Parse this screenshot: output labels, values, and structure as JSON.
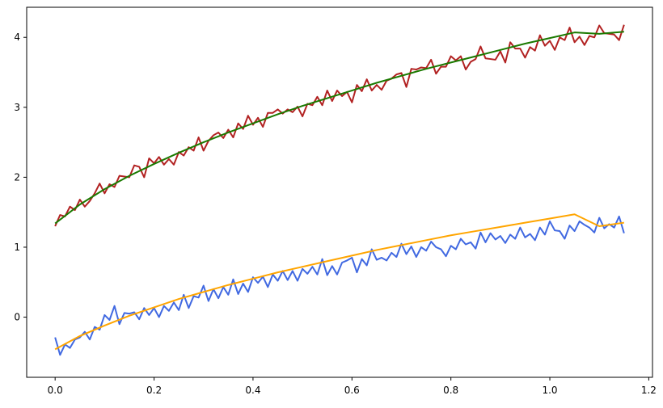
{
  "chart_data": {
    "type": "line",
    "title": "",
    "xlabel": "",
    "ylabel": "",
    "xlim": [
      -0.0575,
      1.2075
    ],
    "ylim": [
      -0.86,
      4.43
    ],
    "x_ticks": [
      0.0,
      0.2,
      0.4,
      0.6,
      0.8,
      1.0,
      1.2
    ],
    "x_tick_labels": [
      "0.0",
      "0.2",
      "0.4",
      "0.6",
      "0.8",
      "1.0",
      "1.2"
    ],
    "y_ticks": [
      0,
      1,
      2,
      3,
      4
    ],
    "y_tick_labels": [
      "0",
      "1",
      "2",
      "3",
      "4"
    ],
    "grid": false,
    "legend": "none",
    "x": [
      0.0,
      0.1,
      0.2,
      0.3,
      0.4,
      0.5,
      0.6,
      0.7,
      0.8,
      0.9,
      1.0,
      1.1,
      1.15
    ],
    "series": [
      {
        "color": "#b22222",
        "style": "noisy",
        "x": [
          0.0,
          0.01,
          0.02,
          0.03,
          0.04,
          0.05,
          0.06,
          0.07,
          0.08,
          0.09,
          0.1,
          0.11,
          0.12,
          0.13,
          0.14,
          0.15,
          0.16,
          0.17,
          0.18,
          0.19,
          0.2,
          0.21,
          0.22,
          0.23,
          0.24,
          0.25,
          0.26,
          0.27,
          0.28,
          0.29,
          0.3,
          0.31,
          0.32,
          0.33,
          0.34,
          0.35,
          0.36,
          0.37,
          0.38,
          0.39,
          0.4,
          0.41,
          0.42,
          0.43,
          0.44,
          0.45,
          0.46,
          0.47,
          0.48,
          0.49,
          0.5,
          0.51,
          0.52,
          0.53,
          0.54,
          0.55,
          0.56,
          0.57,
          0.58,
          0.59,
          0.6,
          0.61,
          0.62,
          0.63,
          0.64,
          0.65,
          0.66,
          0.67,
          0.68,
          0.69,
          0.7,
          0.71,
          0.72,
          0.73,
          0.74,
          0.75,
          0.76,
          0.77,
          0.78,
          0.79,
          0.8,
          0.81,
          0.82,
          0.83,
          0.84,
          0.85,
          0.86,
          0.87,
          0.88,
          0.89,
          0.9,
          0.91,
          0.92,
          0.93,
          0.94,
          0.95,
          0.96,
          0.97,
          0.98,
          0.99,
          1.0,
          1.01,
          1.02,
          1.03,
          1.04,
          1.05,
          1.06,
          1.07,
          1.08,
          1.09,
          1.1,
          1.11,
          1.12,
          1.13,
          1.14,
          1.15
        ],
        "values": [
          1.3,
          1.46,
          1.44,
          1.58,
          1.53,
          1.68,
          1.58,
          1.66,
          1.77,
          1.91,
          1.77,
          1.9,
          1.86,
          2.02,
          2.01,
          2.0,
          2.17,
          2.15,
          2.0,
          2.27,
          2.2,
          2.29,
          2.18,
          2.26,
          2.18,
          2.36,
          2.31,
          2.43,
          2.38,
          2.57,
          2.38,
          2.52,
          2.6,
          2.64,
          2.56,
          2.68,
          2.57,
          2.77,
          2.69,
          2.88,
          2.75,
          2.85,
          2.72,
          2.92,
          2.92,
          2.97,
          2.91,
          2.97,
          2.93,
          3.01,
          2.87,
          3.05,
          3.03,
          3.15,
          3.03,
          3.24,
          3.09,
          3.24,
          3.16,
          3.22,
          3.07,
          3.32,
          3.23,
          3.4,
          3.24,
          3.32,
          3.25,
          3.38,
          3.41,
          3.47,
          3.49,
          3.29,
          3.55,
          3.54,
          3.57,
          3.56,
          3.68,
          3.48,
          3.58,
          3.58,
          3.73,
          3.67,
          3.73,
          3.54,
          3.65,
          3.69,
          3.87,
          3.7,
          3.69,
          3.68,
          3.8,
          3.64,
          3.93,
          3.84,
          3.84,
          3.71,
          3.86,
          3.81,
          4.03,
          3.88,
          3.95,
          3.82,
          4.0,
          3.96,
          4.14,
          3.93,
          4.01,
          3.89,
          4.02,
          4.0,
          4.17,
          4.06,
          4.05,
          4.04,
          3.96,
          4.18
        ]
      },
      {
        "color": "#1a7a00",
        "style": "smooth",
        "x": [
          0.0,
          0.05,
          0.1,
          0.15,
          0.2,
          0.25,
          0.3,
          0.35,
          0.4,
          0.45,
          0.5,
          0.55,
          0.6,
          0.65,
          0.7,
          0.75,
          0.8,
          0.85,
          0.9,
          0.95,
          1.0,
          1.05,
          1.1,
          1.15
        ],
        "values": [
          1.34,
          1.61,
          1.83,
          2.02,
          2.19,
          2.35,
          2.5,
          2.64,
          2.77,
          2.9,
          3.02,
          3.13,
          3.24,
          3.35,
          3.45,
          3.55,
          3.64,
          3.73,
          3.82,
          3.91,
          3.99,
          4.07,
          4.05,
          4.08
        ]
      },
      {
        "color": "#4169e1",
        "style": "noisy",
        "x": [
          0.0,
          0.01,
          0.02,
          0.03,
          0.04,
          0.05,
          0.06,
          0.07,
          0.08,
          0.09,
          0.1,
          0.11,
          0.12,
          0.13,
          0.14,
          0.15,
          0.16,
          0.17,
          0.18,
          0.19,
          0.2,
          0.21,
          0.22,
          0.23,
          0.24,
          0.25,
          0.26,
          0.27,
          0.28,
          0.29,
          0.3,
          0.31,
          0.32,
          0.33,
          0.34,
          0.35,
          0.36,
          0.37,
          0.38,
          0.39,
          0.4,
          0.41,
          0.42,
          0.43,
          0.44,
          0.45,
          0.46,
          0.47,
          0.48,
          0.49,
          0.5,
          0.51,
          0.52,
          0.53,
          0.54,
          0.55,
          0.56,
          0.57,
          0.58,
          0.59,
          0.6,
          0.61,
          0.62,
          0.63,
          0.64,
          0.65,
          0.66,
          0.67,
          0.68,
          0.69,
          0.7,
          0.71,
          0.72,
          0.73,
          0.74,
          0.75,
          0.76,
          0.77,
          0.78,
          0.79,
          0.8,
          0.81,
          0.82,
          0.83,
          0.84,
          0.85,
          0.86,
          0.87,
          0.88,
          0.89,
          0.9,
          0.91,
          0.92,
          0.93,
          0.94,
          0.95,
          0.96,
          0.97,
          0.98,
          0.99,
          1.0,
          1.01,
          1.02,
          1.03,
          1.04,
          1.05,
          1.06,
          1.07,
          1.08,
          1.09,
          1.1,
          1.11,
          1.12,
          1.13,
          1.14,
          1.15
        ],
        "values": [
          -0.29,
          -0.54,
          -0.39,
          -0.44,
          -0.32,
          -0.29,
          -0.21,
          -0.32,
          -0.14,
          -0.18,
          0.03,
          -0.04,
          0.16,
          -0.1,
          0.06,
          0.05,
          0.07,
          -0.03,
          0.13,
          0.03,
          0.13,
          0.0,
          0.16,
          0.09,
          0.21,
          0.1,
          0.32,
          0.13,
          0.3,
          0.28,
          0.45,
          0.23,
          0.4,
          0.27,
          0.43,
          0.32,
          0.54,
          0.33,
          0.48,
          0.36,
          0.57,
          0.49,
          0.58,
          0.43,
          0.61,
          0.52,
          0.66,
          0.53,
          0.66,
          0.52,
          0.69,
          0.62,
          0.72,
          0.61,
          0.83,
          0.6,
          0.73,
          0.61,
          0.78,
          0.81,
          0.85,
          0.64,
          0.83,
          0.74,
          0.97,
          0.82,
          0.85,
          0.81,
          0.92,
          0.86,
          1.05,
          0.9,
          1.01,
          0.86,
          1.0,
          0.95,
          1.08,
          1.0,
          0.97,
          0.87,
          1.02,
          0.97,
          1.12,
          1.04,
          1.07,
          0.98,
          1.21,
          1.07,
          1.2,
          1.11,
          1.16,
          1.06,
          1.18,
          1.12,
          1.28,
          1.14,
          1.19,
          1.1,
          1.28,
          1.18,
          1.37,
          1.24,
          1.23,
          1.12,
          1.31,
          1.23,
          1.37,
          1.32,
          1.28,
          1.21,
          1.42,
          1.27,
          1.33,
          1.28,
          1.44,
          1.2
        ]
      },
      {
        "color": "#ffa500",
        "style": "smooth",
        "x": [
          0.0,
          0.05,
          0.1,
          0.15,
          0.2,
          0.25,
          0.3,
          0.35,
          0.4,
          0.45,
          0.5,
          0.55,
          0.6,
          0.65,
          0.7,
          0.75,
          0.8,
          0.85,
          0.9,
          0.95,
          1.0,
          1.05,
          1.1,
          1.15
        ],
        "values": [
          -0.46,
          -0.27,
          -0.12,
          0.02,
          0.14,
          0.26,
          0.36,
          0.46,
          0.55,
          0.64,
          0.72,
          0.8,
          0.88,
          0.96,
          1.03,
          1.1,
          1.17,
          1.23,
          1.29,
          1.35,
          1.41,
          1.47,
          1.3,
          1.35
        ]
      }
    ]
  }
}
